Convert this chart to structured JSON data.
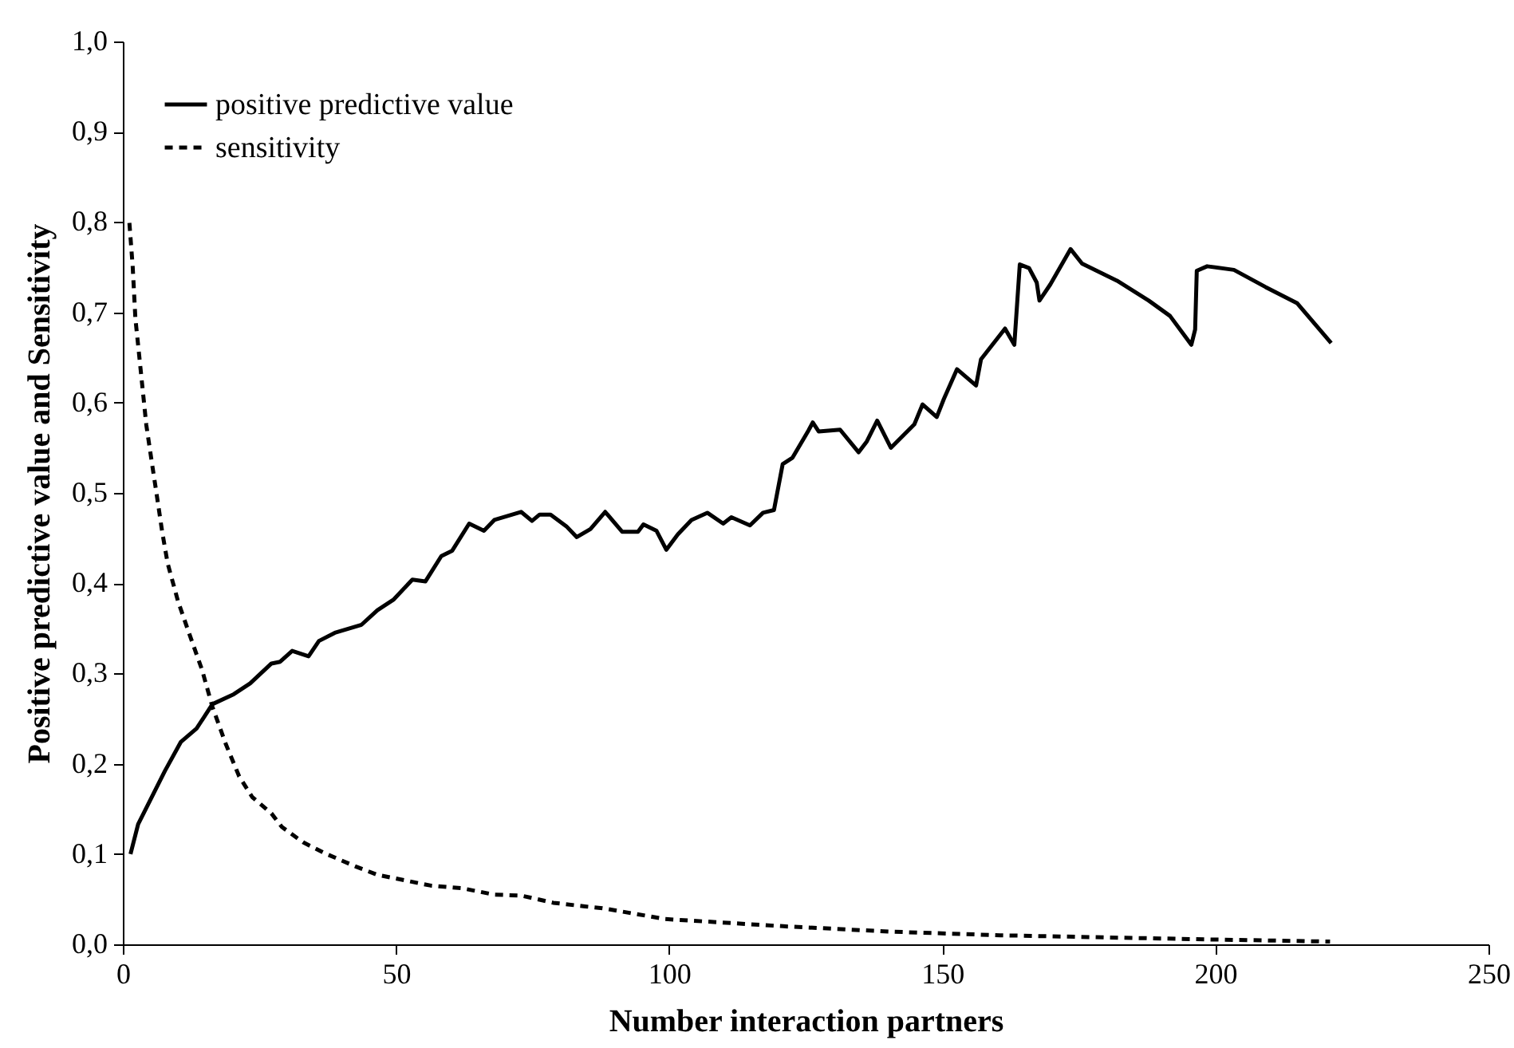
{
  "chart_data": {
    "type": "line",
    "xlabel": "Number interaction partners",
    "ylabel": "Positive predictive value and Sensitivity",
    "xlim": [
      0,
      250
    ],
    "xticks": [
      0,
      50,
      100,
      150,
      200,
      250
    ],
    "ylim": [
      0,
      1
    ],
    "yticks": [
      {
        "value": 0,
        "label": "0,0"
      },
      {
        "value": 0.1,
        "label": "0,1"
      },
      {
        "value": 0.2,
        "label": "0,2"
      },
      {
        "value": 0.3,
        "label": "0,3"
      },
      {
        "value": 0.4,
        "label": "0,4"
      },
      {
        "value": 0.5,
        "label": "0,5"
      },
      {
        "value": 0.6,
        "label": "0,6"
      },
      {
        "value": 0.7,
        "label": "0,7"
      },
      {
        "value": 0.8,
        "label": "0,8"
      },
      {
        "value": 0.9,
        "label": "0,9"
      },
      {
        "value": 1,
        "label": "1,0"
      }
    ],
    "legend": "top left",
    "grid": false,
    "series": [
      {
        "name": "positive predictive value",
        "color": "#000000",
        "line_style": "solid",
        "x": [
          1.4,
          2.8,
          5.7,
          7.7,
          10.6,
          13.5,
          16.4,
          20.3,
          23.3,
          27.2,
          28.8,
          31.0,
          34.0,
          35.9,
          38.8,
          43.7,
          46.6,
          49.6,
          53.0,
          55.4,
          58.3,
          60.3,
          63.4,
          66.1,
          68.0,
          72.9,
          74.9,
          76.3,
          78.3,
          81.2,
          83.1,
          85.6,
          88.3,
          91.4,
          94.3,
          95.3,
          97.7,
          99.5,
          101.6,
          104.1,
          107.0,
          109.9,
          111.4,
          114.8,
          117.2,
          119.2,
          120.8,
          122.6,
          125.5,
          126.3,
          127.4,
          131.3,
          134.7,
          136.2,
          138.1,
          140.6,
          144.9,
          146.4,
          149.0,
          150.3,
          152.7,
          156.2,
          157.1,
          161.5,
          163.2,
          164.2,
          165.9,
          167.3,
          167.8,
          169.8,
          173.5,
          175.6,
          182.0,
          187.8,
          191.7,
          195.6,
          196.3,
          196.6,
          198.5,
          203.4,
          209.2,
          215.0,
          221.2
        ],
        "values": [
          0.1,
          0.133,
          0.168,
          0.192,
          0.224,
          0.239,
          0.266,
          0.277,
          0.289,
          0.311,
          0.313,
          0.325,
          0.319,
          0.336,
          0.345,
          0.354,
          0.37,
          0.382,
          0.404,
          0.402,
          0.43,
          0.436,
          0.466,
          0.458,
          0.47,
          0.479,
          0.469,
          0.476,
          0.476,
          0.463,
          0.451,
          0.46,
          0.479,
          0.457,
          0.457,
          0.465,
          0.458,
          0.437,
          0.454,
          0.47,
          0.478,
          0.466,
          0.473,
          0.464,
          0.478,
          0.481,
          0.532,
          0.539,
          0.569,
          0.578,
          0.568,
          0.57,
          0.545,
          0.557,
          0.58,
          0.55,
          0.576,
          0.598,
          0.584,
          0.604,
          0.637,
          0.619,
          0.648,
          0.682,
          0.664,
          0.753,
          0.749,
          0.733,
          0.713,
          0.731,
          0.77,
          0.754,
          0.735,
          0.713,
          0.696,
          0.664,
          0.681,
          0.746,
          0.751,
          0.747,
          0.728,
          0.71,
          0.666
        ]
      },
      {
        "name": "sensitivity",
        "color": "#000000",
        "line_style": "dashed",
        "x": [
          1.2,
          1.8,
          2.3,
          3.3,
          4.3,
          5.3,
          6.2,
          7.2,
          8.2,
          10.1,
          12.1,
          14.5,
          16.4,
          18.9,
          21.3,
          23.7,
          27.2,
          29.1,
          33.0,
          36.9,
          42.7,
          46.6,
          56.4,
          62.2,
          68.0,
          72.9,
          78.8,
          84.6,
          87.8,
          99.3,
          120.9,
          140.7,
          160.6,
          193.7,
          221.0
        ],
        "values": [
          0.799,
          0.751,
          0.693,
          0.634,
          0.575,
          0.534,
          0.498,
          0.457,
          0.422,
          0.38,
          0.345,
          0.304,
          0.263,
          0.221,
          0.186,
          0.163,
          0.145,
          0.13,
          0.113,
          0.101,
          0.086,
          0.077,
          0.065,
          0.062,
          0.055,
          0.054,
          0.046,
          0.042,
          0.04,
          0.028,
          0.02,
          0.014,
          0.01,
          0.006,
          0.003
        ]
      }
    ]
  }
}
